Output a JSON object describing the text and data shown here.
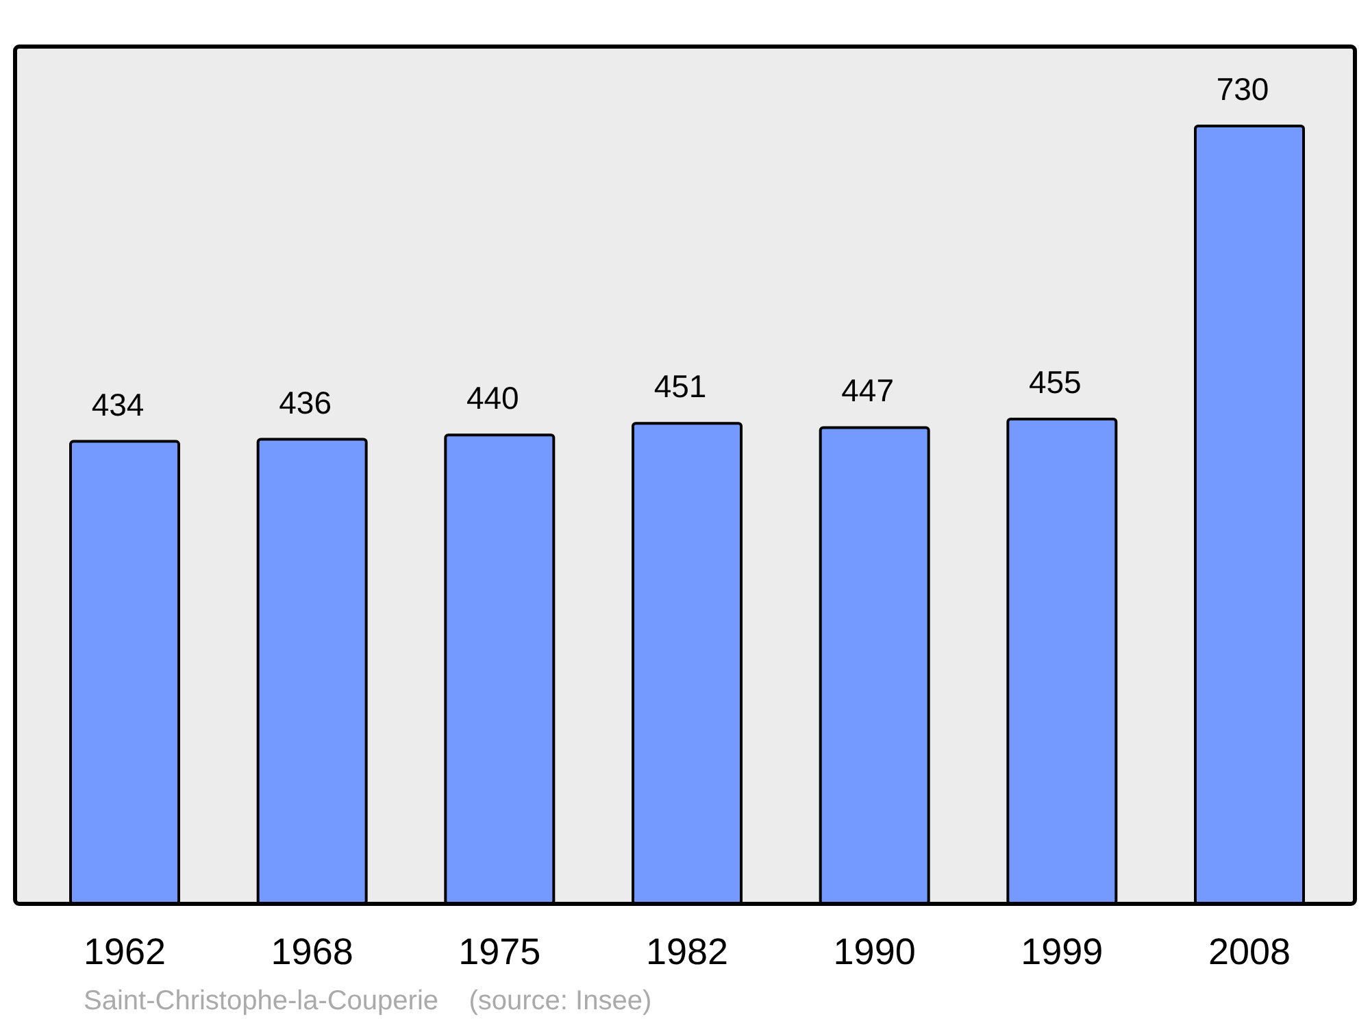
{
  "chart_data": {
    "type": "bar",
    "categories": [
      "1962",
      "1968",
      "1975",
      "1982",
      "1990",
      "1999",
      "2008"
    ],
    "values": [
      434,
      436,
      440,
      451,
      447,
      455,
      730
    ],
    "color": "#7499ff",
    "data_labels": true,
    "annotations": [
      "Saint-Christophe-la-Couperie    (source: Insee)"
    ]
  }
}
